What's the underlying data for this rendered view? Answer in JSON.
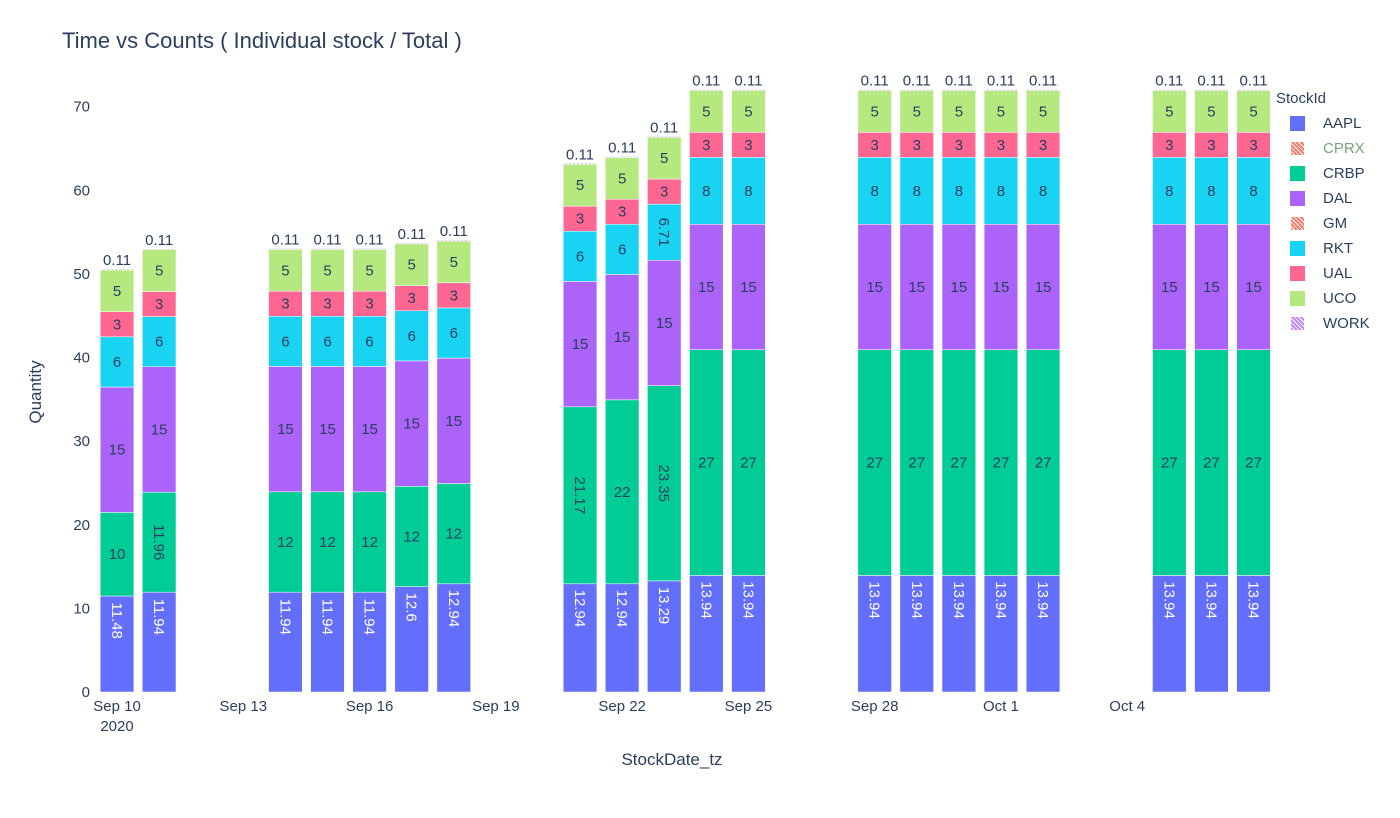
{
  "chart_data": {
    "type": "bar",
    "barmode": "stack",
    "title": "Time vs Counts ( Individual stock / Total )",
    "xlabel": "StockDate_tz",
    "ylabel": "Quantity",
    "ylim": [
      0,
      72
    ],
    "yticks": [
      0,
      10,
      20,
      30,
      40,
      50,
      60,
      70
    ],
    "xlim": [
      "2020-09-09T12:00",
      "2020-10-06T22:00"
    ],
    "xticks": [
      {
        "date": "2020-09-10",
        "label": "Sep 10",
        "sublabel": "2020"
      },
      {
        "date": "2020-09-13",
        "label": "Sep 13"
      },
      {
        "date": "2020-09-16",
        "label": "Sep 16"
      },
      {
        "date": "2020-09-19",
        "label": "Sep 19"
      },
      {
        "date": "2020-09-22",
        "label": "Sep 22"
      },
      {
        "date": "2020-09-25",
        "label": "Sep 25"
      },
      {
        "date": "2020-09-28",
        "label": "Sep 28"
      },
      {
        "date": "2020-10-01",
        "label": "Oct 1"
      },
      {
        "date": "2020-10-04",
        "label": "Oct 4"
      }
    ],
    "legend_title": "StockId",
    "legend_position": "right",
    "x": [
      "2020-09-10",
      "2020-09-11",
      "2020-09-14",
      "2020-09-15",
      "2020-09-16",
      "2020-09-17",
      "2020-09-18",
      "2020-09-21",
      "2020-09-22",
      "2020-09-23",
      "2020-09-24",
      "2020-09-25",
      "2020-09-28",
      "2020-09-29",
      "2020-09-30",
      "2020-10-01",
      "2020-10-02",
      "2020-10-05",
      "2020-10-06",
      "2020-10-07"
    ],
    "series": [
      {
        "name": "AAPL",
        "color": "#636efa",
        "values": [
          11.48,
          11.94,
          11.94,
          11.94,
          11.94,
          12.6,
          12.94,
          12.94,
          12.94,
          13.29,
          13.94,
          13.94,
          13.94,
          13.94,
          13.94,
          13.94,
          13.94,
          13.94,
          13.94,
          13.94
        ]
      },
      {
        "name": "CPRX",
        "color": "#ef553b",
        "pattern": true,
        "values": [
          null,
          null,
          null,
          null,
          null,
          null,
          null,
          null,
          null,
          null,
          null,
          null,
          null,
          null,
          null,
          null,
          null,
          null,
          null,
          null
        ]
      },
      {
        "name": "CRBP",
        "color": "#00cc96",
        "values": [
          10,
          11.96,
          12,
          12,
          12,
          12,
          12,
          21.17,
          22,
          23.35,
          27,
          27,
          27,
          27,
          27,
          27,
          27,
          27,
          27,
          27
        ]
      },
      {
        "name": "DAL",
        "color": "#ab63fa",
        "values": [
          15,
          15,
          15,
          15,
          15,
          15,
          15,
          15,
          15,
          15,
          15,
          15,
          15,
          15,
          15,
          15,
          15,
          15,
          15,
          15
        ]
      },
      {
        "name": "GM",
        "color": "#ef553b",
        "pattern": true,
        "values": [
          null,
          null,
          null,
          null,
          null,
          null,
          null,
          null,
          null,
          null,
          null,
          null,
          null,
          null,
          null,
          null,
          null,
          null,
          null,
          null
        ]
      },
      {
        "name": "RKT",
        "color": "#19d3f3",
        "values": [
          6,
          6,
          6,
          6,
          6,
          6,
          6,
          6,
          6,
          6.71,
          8,
          8,
          8,
          8,
          8,
          8,
          8,
          8,
          8,
          8
        ]
      },
      {
        "name": "UAL",
        "color": "#ff6692",
        "values": [
          3,
          3,
          3,
          3,
          3,
          3,
          3,
          3,
          3,
          3,
          3,
          3,
          3,
          3,
          3,
          3,
          3,
          3,
          3,
          3
        ]
      },
      {
        "name": "UCO",
        "color": "#b6e880",
        "values": [
          5,
          5,
          5,
          5,
          5,
          5,
          5,
          5,
          5,
          5,
          5,
          5,
          5,
          5,
          5,
          5,
          5,
          5,
          5,
          5
        ]
      },
      {
        "name": "WORK",
        "color": "#ab63fa",
        "pattern": true,
        "values": [
          0.11,
          0.11,
          0.11,
          0.11,
          0.11,
          0.11,
          0.11,
          0.11,
          0.11,
          0.11,
          0.11,
          0.11,
          0.11,
          0.11,
          0.11,
          0.11,
          0.11,
          0.11,
          0.11,
          0.11
        ]
      }
    ]
  }
}
